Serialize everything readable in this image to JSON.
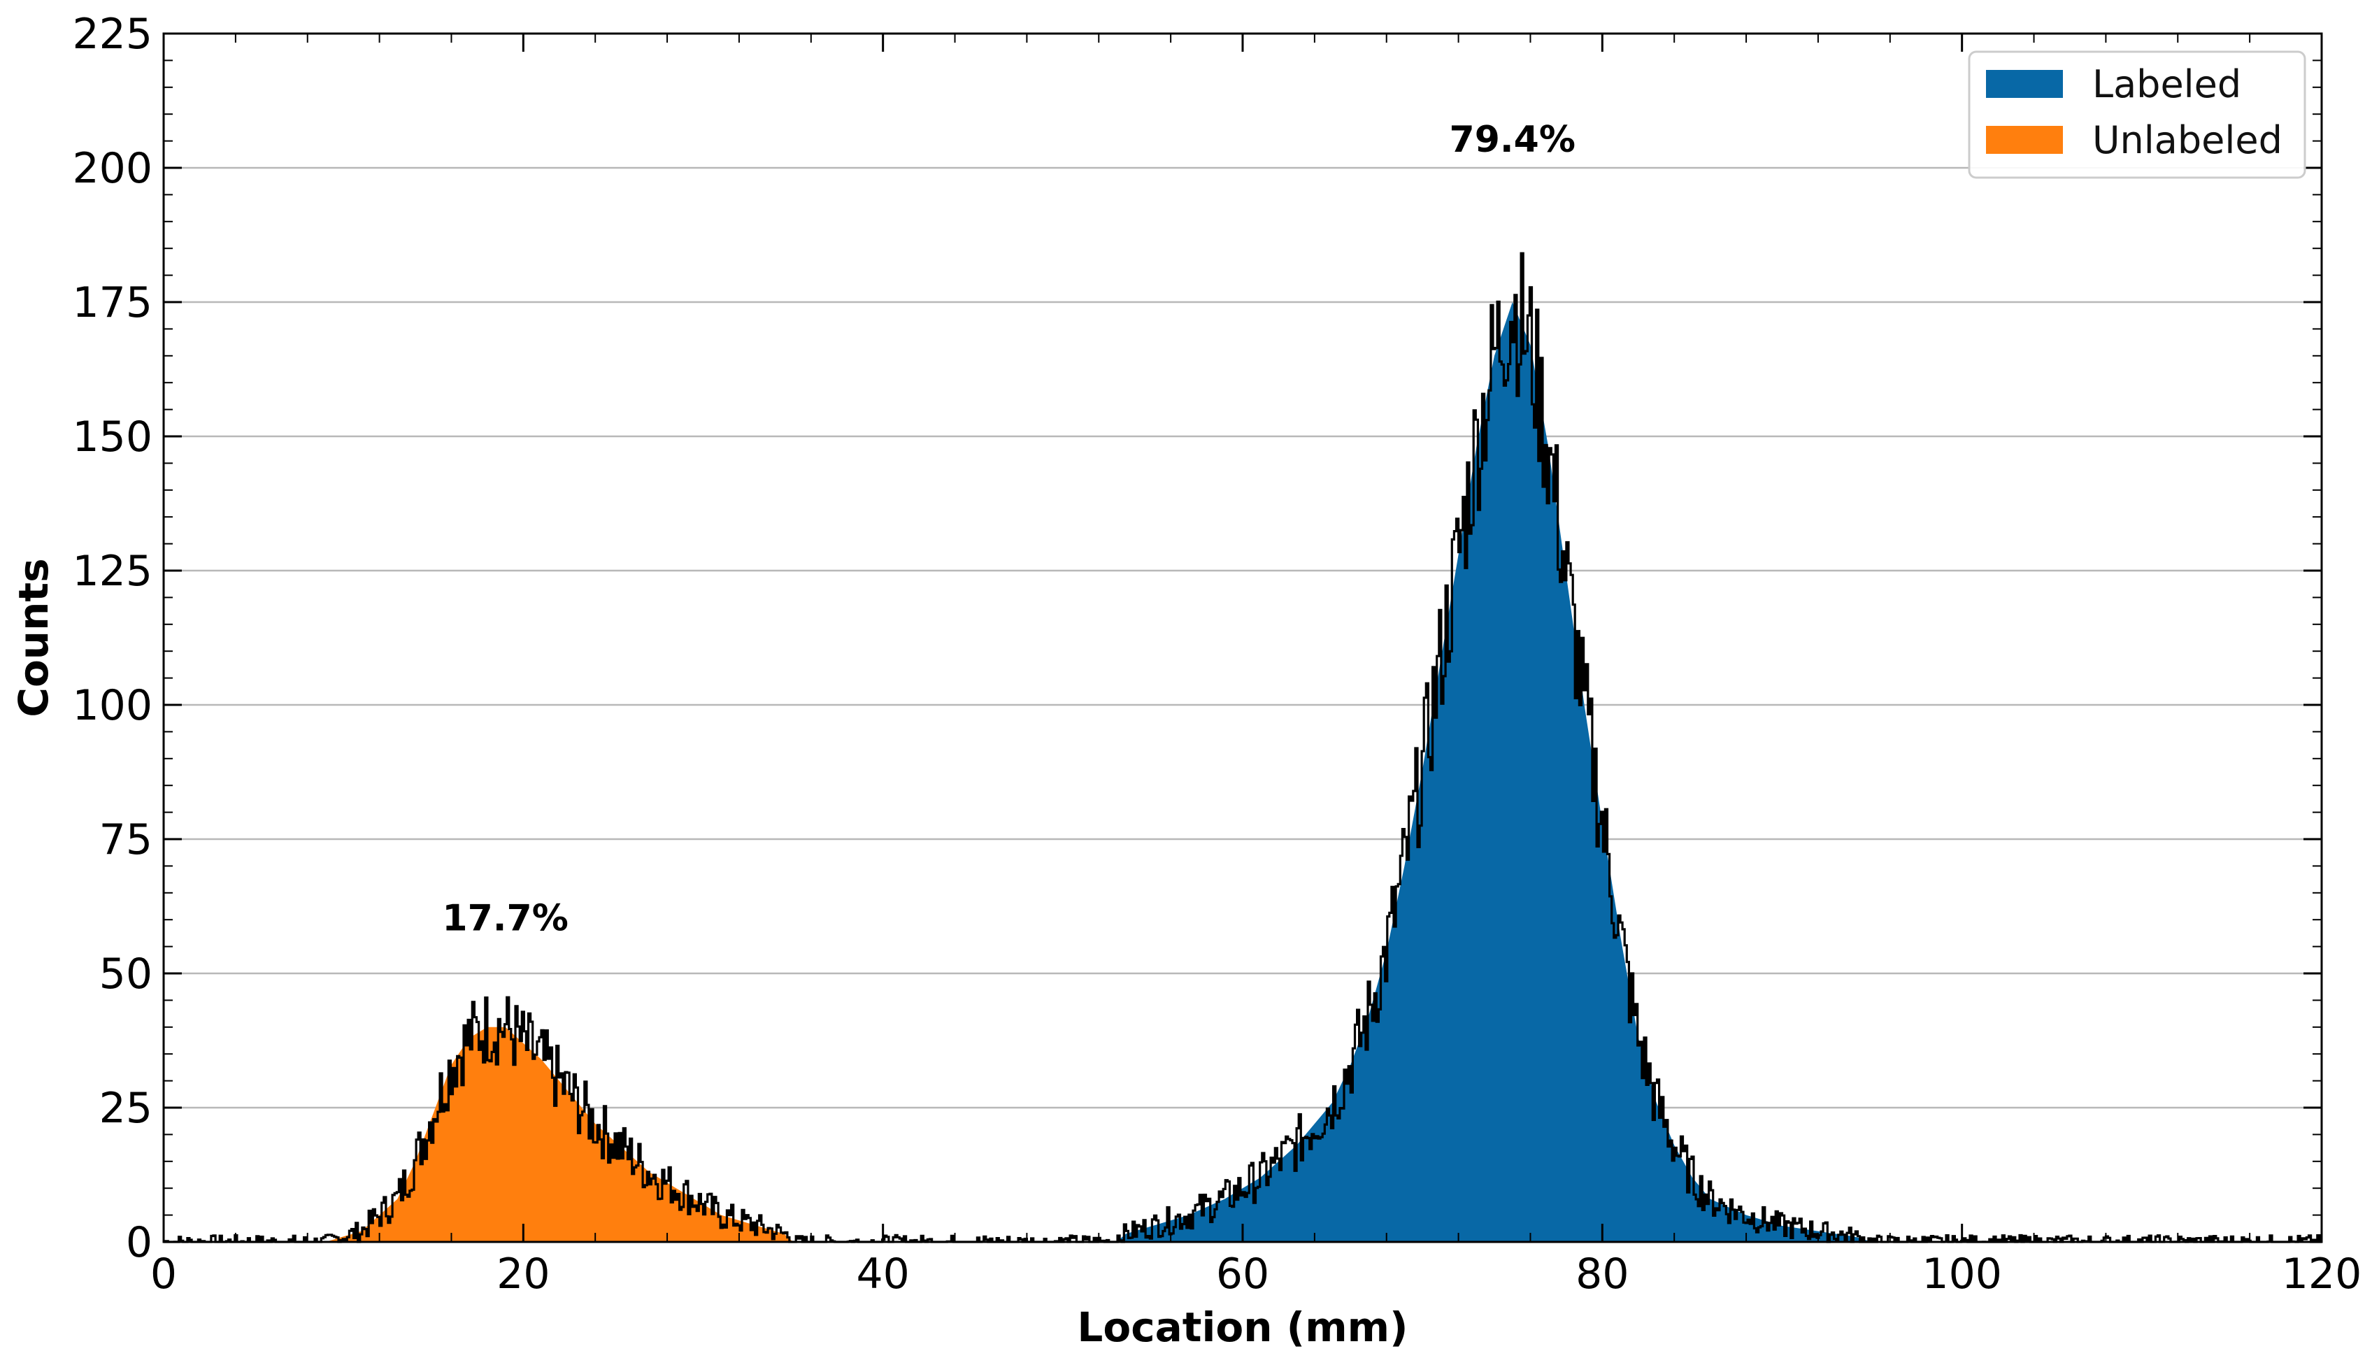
{
  "chart_data": {
    "type": "area",
    "title": "",
    "xlabel": "Location (mm)",
    "ylabel": "Counts",
    "xlim": [
      0,
      120
    ],
    "ylim": [
      0,
      225
    ],
    "xticks": [
      "0",
      "20",
      "40",
      "60",
      "80",
      "100",
      "120"
    ],
    "yticks": [
      "0",
      "25",
      "50",
      "75",
      "100",
      "125",
      "150",
      "175",
      "200",
      "225"
    ],
    "grid": "horizontal",
    "legend_position": "top-right",
    "series": [
      {
        "name": "Labeled",
        "color": "#0868a6",
        "x": [
          53,
          55,
          57,
          59,
          61,
          63,
          65,
          66,
          67,
          68,
          69,
          70,
          71,
          72,
          73,
          74,
          75,
          76,
          77,
          78,
          79,
          80,
          81,
          82,
          83,
          84,
          85,
          86,
          88,
          90,
          92,
          94,
          95
        ],
        "y": [
          1,
          3,
          5,
          8,
          12,
          18,
          26,
          33,
          42,
          54,
          70,
          88,
          108,
          128,
          148,
          165,
          175,
          167,
          148,
          124,
          100,
          78,
          57,
          38,
          26,
          18,
          12,
          8,
          5,
          3,
          2,
          1,
          0
        ]
      },
      {
        "name": "Unlabeled",
        "color": "#ff7f0e",
        "x": [
          9,
          11,
          13,
          14,
          15,
          16,
          17,
          18,
          19,
          20,
          21,
          22,
          23,
          24,
          25,
          26,
          27,
          28,
          29,
          30,
          31,
          32,
          33,
          34,
          35
        ],
        "y": [
          0,
          2,
          8,
          15,
          24,
          33,
          38,
          40,
          40,
          37,
          34,
          30,
          26,
          22,
          19,
          16,
          13,
          11,
          9,
          7,
          5,
          4,
          3,
          2,
          1
        ]
      }
    ],
    "annotations": [
      {
        "text": "17.7%",
        "x": 19,
        "y": 58
      },
      {
        "text": "79.4%",
        "x": 75,
        "y": 203
      }
    ]
  }
}
